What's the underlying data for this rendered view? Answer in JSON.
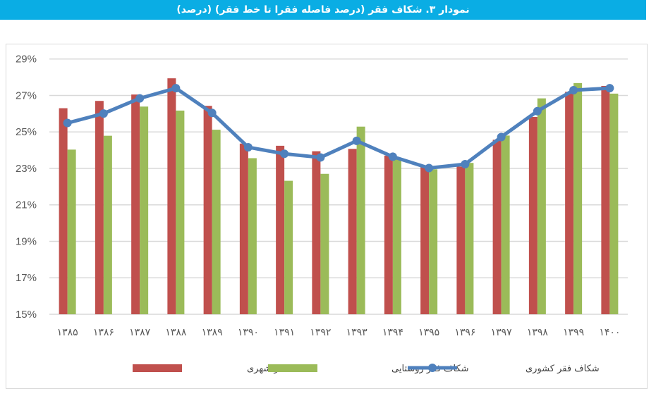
{
  "title": "نمودار ۳. شکاف فقر (درصد فاصله فقرا تا خط فقر) (درصد)",
  "chart_data": {
    "type": "bar",
    "title": "نمودار ۳. شکاف فقر (درصد فاصله فقرا تا خط فقر) (درصد)",
    "categories": [
      "۱۳۸۵",
      "۱۳۸۶",
      "۱۳۸۷",
      "۱۳۸۸",
      "۱۳۸۹",
      "۱۳۹۰",
      "۱۳۹۱",
      "۱۳۹۲",
      "۱۳۹۳",
      "۱۳۹۴",
      "۱۳۹۵",
      "۱۳۹۶",
      "۱۳۹۷",
      "۱۳۹۸",
      "۱۳۹۹",
      "۱۴۰۰"
    ],
    "ylim": [
      15,
      29
    ],
    "yticks": [
      "15%",
      "17%",
      "19%",
      "21%",
      "23%",
      "25%",
      "27%",
      "29%"
    ],
    "ytick_values": [
      15,
      17,
      19,
      21,
      23,
      25,
      27,
      29
    ],
    "grid": true,
    "legend_position": "bottom",
    "series": [
      {
        "name": "شکاف فقر شهری",
        "kind": "bar",
        "color": "#c0504d",
        "values": [
          26.3,
          26.7,
          27.05,
          27.94,
          26.43,
          24.36,
          24.24,
          23.94,
          24.07,
          23.7,
          23.1,
          23.1,
          24.57,
          25.82,
          27.2,
          27.52
        ]
      },
      {
        "name": "شکاف فقر روستایی",
        "kind": "bar",
        "color": "#9bbb59",
        "values": [
          24.03,
          24.79,
          26.39,
          26.17,
          25.12,
          23.56,
          22.32,
          22.7,
          25.29,
          23.5,
          22.95,
          23.3,
          24.8,
          26.84,
          27.68,
          27.1
        ]
      },
      {
        "name": "شکاف فقر کشوری",
        "kind": "line",
        "color": "#4f81bd",
        "values": [
          25.49,
          26.01,
          26.84,
          27.4,
          26.04,
          24.16,
          23.8,
          23.6,
          24.51,
          23.64,
          23.02,
          23.23,
          24.72,
          26.14,
          27.29,
          27.4
        ]
      }
    ]
  }
}
